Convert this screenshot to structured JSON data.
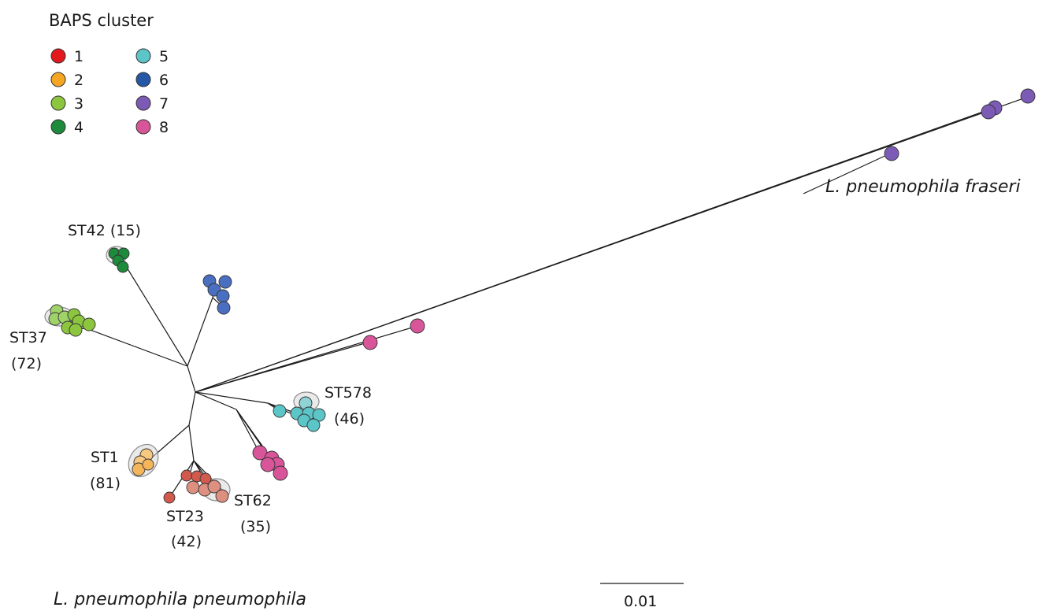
{
  "legend": {
    "title": "BAPS cluster",
    "items": [
      {
        "label": "1",
        "color": "#e31a1c"
      },
      {
        "label": "2",
        "color": "#f5a623"
      },
      {
        "label": "3",
        "color": "#8cc63f"
      },
      {
        "label": "4",
        "color": "#1e8a3c"
      },
      {
        "label": "5",
        "color": "#5bc5c8"
      },
      {
        "label": "6",
        "color": "#2458a6"
      },
      {
        "label": "7",
        "color": "#7b5bb5"
      },
      {
        "label": "8",
        "color": "#d9559a"
      }
    ]
  },
  "clade_labels": {
    "st42": "ST42 (15)",
    "st37_a": "ST37",
    "st37_b": "(72)",
    "st578_a": "ST578",
    "st578_b": "(46)",
    "st1_a": "ST1",
    "st1_b": "(81)",
    "st23_a": "ST23",
    "st23_b": "(42)",
    "st62_a": "ST62",
    "st62_b": "(35)"
  },
  "subspecies": {
    "fraseri": "L. pneumophila fraseri",
    "pneumophila": "L. pneumophila pneumophila"
  },
  "scale_bar": {
    "label": "0.01"
  }
}
